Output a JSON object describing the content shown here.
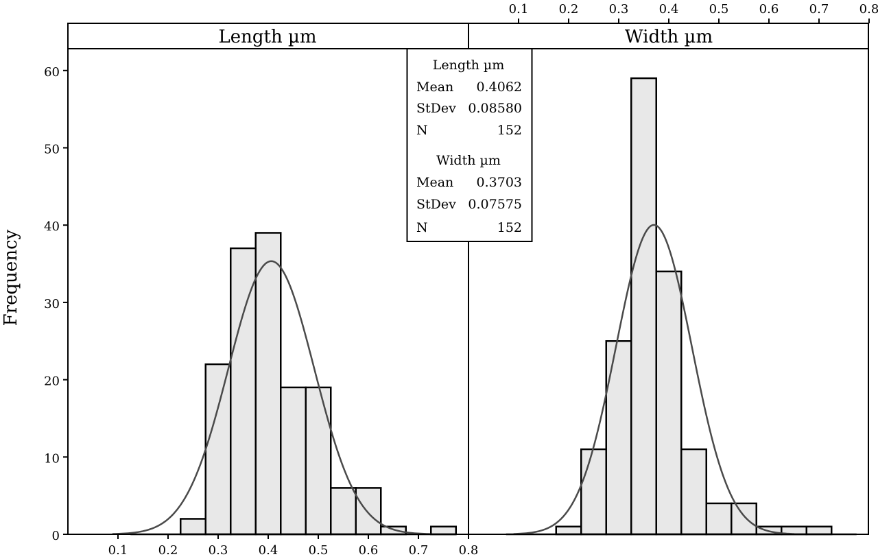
{
  "chart_data": {
    "type": "bar",
    "ylabel": "Frequency",
    "ylim": [
      0,
      62.5
    ],
    "yticks": [
      0,
      10,
      20,
      30,
      40,
      50,
      60
    ],
    "xticks": [
      0.1,
      0.2,
      0.3,
      0.4,
      0.5,
      0.6,
      0.7,
      0.8
    ],
    "xlim": [
      0,
      0.8
    ],
    "bin_width": 0.05,
    "panels": [
      {
        "title": "Length µm",
        "x_axis_position": "bottom",
        "bins": [
          {
            "x": 0.15,
            "count": 0
          },
          {
            "x": 0.2,
            "count": 0
          },
          {
            "x": 0.25,
            "count": 2
          },
          {
            "x": 0.3,
            "count": 22
          },
          {
            "x": 0.35,
            "count": 37
          },
          {
            "x": 0.4,
            "count": 39
          },
          {
            "x": 0.45,
            "count": 19
          },
          {
            "x": 0.5,
            "count": 19
          },
          {
            "x": 0.55,
            "count": 6
          },
          {
            "x": 0.6,
            "count": 6
          },
          {
            "x": 0.65,
            "count": 1
          },
          {
            "x": 0.7,
            "count": 0
          },
          {
            "x": 0.75,
            "count": 1
          }
        ],
        "fit": {
          "mean": 0.4062,
          "stdev": 0.0858,
          "n": 152
        }
      },
      {
        "title": "Width µm",
        "x_axis_position": "top",
        "bins": [
          {
            "x": 0.1,
            "count": 0
          },
          {
            "x": 0.15,
            "count": 0
          },
          {
            "x": 0.2,
            "count": 1
          },
          {
            "x": 0.25,
            "count": 11
          },
          {
            "x": 0.3,
            "count": 25
          },
          {
            "x": 0.35,
            "count": 59
          },
          {
            "x": 0.4,
            "count": 34
          },
          {
            "x": 0.45,
            "count": 11
          },
          {
            "x": 0.5,
            "count": 4
          },
          {
            "x": 0.55,
            "count": 4
          },
          {
            "x": 0.6,
            "count": 1
          },
          {
            "x": 0.65,
            "count": 1
          },
          {
            "x": 0.7,
            "count": 1
          },
          {
            "x": 0.75,
            "count": 0
          }
        ],
        "fit": {
          "mean": 0.3703,
          "stdev": 0.07575,
          "n": 152
        }
      }
    ],
    "stats_box": [
      {
        "title": "Length µm",
        "rows": [
          {
            "label": "Mean",
            "value": "0.4062"
          },
          {
            "label": "StDev",
            "value": "0.08580"
          },
          {
            "label": "N",
            "value": "152"
          }
        ]
      },
      {
        "title": "Width µm",
        "rows": [
          {
            "label": "Mean",
            "value": "0.3703"
          },
          {
            "label": "StDev",
            "value": "0.07575"
          },
          {
            "label": "N",
            "value": "152"
          }
        ]
      }
    ],
    "colors": {
      "bar_fill": "#e8e8e8",
      "bar_stroke": "#000000",
      "curve": "#4a4a4a"
    },
    "grid": false,
    "legend": "stats-box-top-center"
  }
}
